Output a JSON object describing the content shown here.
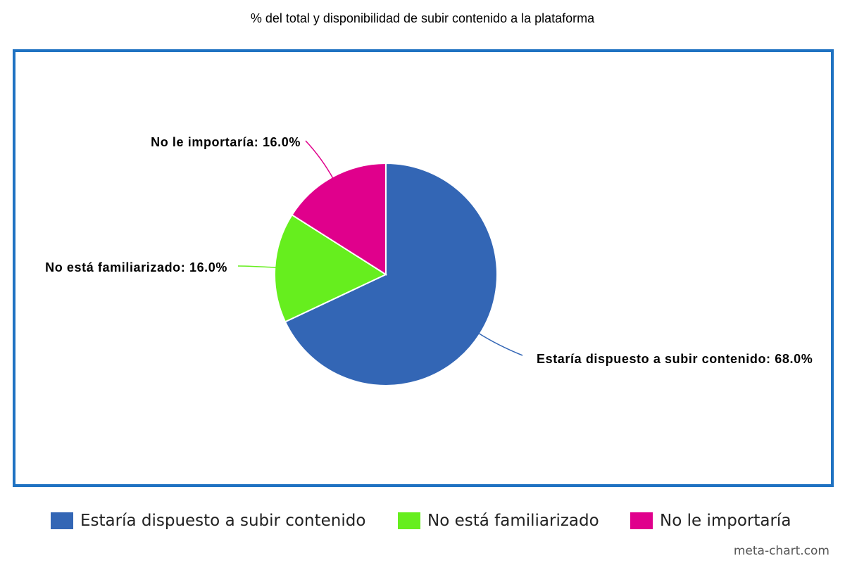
{
  "chart_data": {
    "type": "pie",
    "title": "% del total y disponibilidad de subir contenido a la plataforma",
    "slices": [
      {
        "name": "Estaría dispuesto a subir contenido",
        "value": 68.0,
        "label": "Estaría dispuesto a subir contenido: 68.0%",
        "color": "#3366b5"
      },
      {
        "name": "No está familiarizado",
        "value": 16.0,
        "label": "No está familiarizado: 16.0%",
        "color": "#66ee1e"
      },
      {
        "name": "No le importaría",
        "value": 16.0,
        "label": "No le importaría: 16.0%",
        "color": "#e0008c"
      }
    ],
    "start_angle_deg": 0,
    "direction": "clockwise",
    "legend": {
      "position": "bottom",
      "items": [
        "Estaría dispuesto a subir contenido",
        "No está familiarizado",
        "No le importaría"
      ]
    },
    "frame_color": "#1f72c2"
  },
  "watermark": "meta-chart.com"
}
